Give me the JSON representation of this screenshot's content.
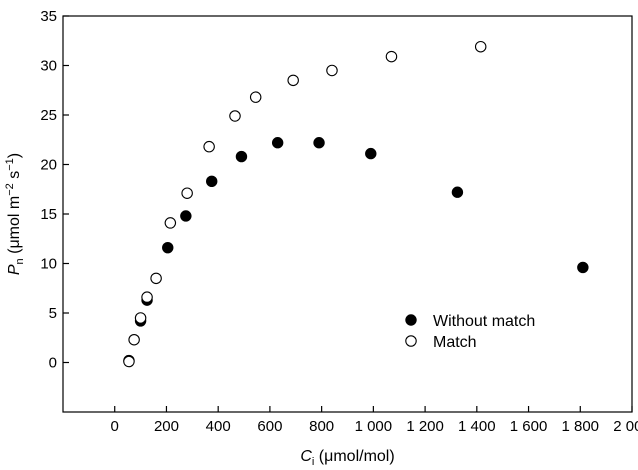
{
  "chart_data": {
    "type": "scatter",
    "xlabel_symbol": "C",
    "xlabel_sub": "i",
    "xlabel_unit": " (μmol/mol)",
    "ylabel_symbol": "P",
    "ylabel_sub": "n",
    "ylabel_unit_pre": " (μmol m",
    "ylabel_sup1": "−2",
    "ylabel_unit_mid": " s",
    "ylabel_sup2": "−1",
    "ylabel_unit_post": ")",
    "xlim": [
      -200,
      2000
    ],
    "ylim": [
      -5,
      35
    ],
    "x_ticks": [
      0,
      200,
      400,
      600,
      800,
      1000,
      1200,
      1400,
      1600,
      1800,
      2000
    ],
    "x_tick_labels": [
      "0",
      "200",
      "400",
      "600",
      "800",
      "1 000",
      "1 200",
      "1 400",
      "1 600",
      "1 800",
      "2 000"
    ],
    "y_ticks": [
      0,
      5,
      10,
      15,
      20,
      25,
      30,
      35
    ],
    "y_tick_labels": [
      "0",
      "5",
      "10",
      "15",
      "20",
      "25",
      "30",
      "35"
    ],
    "grid": false,
    "legend_position": "bottom-right",
    "series": [
      {
        "name": "Without match",
        "marker": "filled-circle",
        "color": "#000000",
        "points": [
          {
            "x": 55,
            "y": 0.2
          },
          {
            "x": 100,
            "y": 4.2
          },
          {
            "x": 125,
            "y": 6.3
          },
          {
            "x": 205,
            "y": 11.6
          },
          {
            "x": 275,
            "y": 14.8
          },
          {
            "x": 375,
            "y": 18.3
          },
          {
            "x": 490,
            "y": 20.8
          },
          {
            "x": 630,
            "y": 22.2
          },
          {
            "x": 790,
            "y": 22.2
          },
          {
            "x": 990,
            "y": 21.1
          },
          {
            "x": 1325,
            "y": 17.2
          },
          {
            "x": 1810,
            "y": 9.6
          }
        ]
      },
      {
        "name": "Match",
        "marker": "open-circle",
        "color": "#000000",
        "points": [
          {
            "x": 55,
            "y": 0.1
          },
          {
            "x": 75,
            "y": 2.3
          },
          {
            "x": 100,
            "y": 4.5
          },
          {
            "x": 125,
            "y": 6.6
          },
          {
            "x": 160,
            "y": 8.5
          },
          {
            "x": 215,
            "y": 14.1
          },
          {
            "x": 280,
            "y": 17.1
          },
          {
            "x": 365,
            "y": 21.8
          },
          {
            "x": 465,
            "y": 24.9
          },
          {
            "x": 545,
            "y": 26.8
          },
          {
            "x": 690,
            "y": 28.5
          },
          {
            "x": 840,
            "y": 29.5
          },
          {
            "x": 1070,
            "y": 30.9
          },
          {
            "x": 1415,
            "y": 31.9
          }
        ]
      }
    ]
  }
}
